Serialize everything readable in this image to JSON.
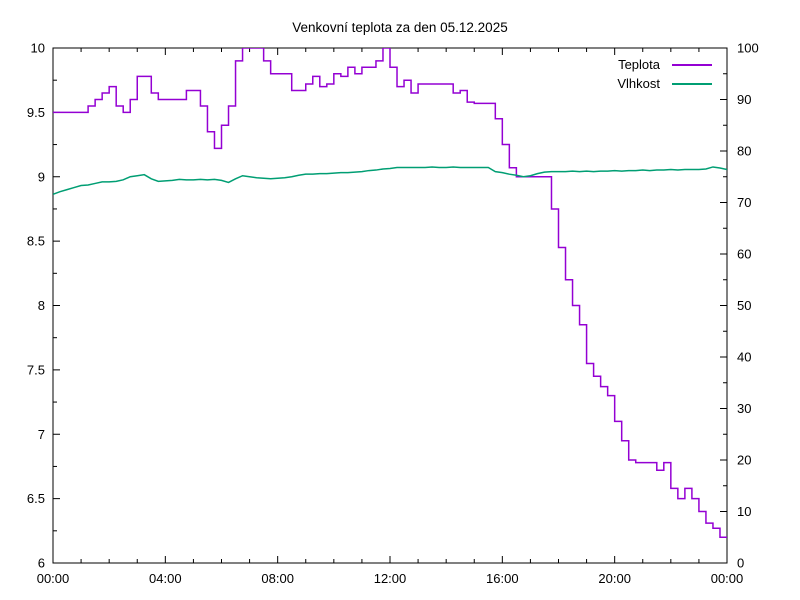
{
  "title": "Venkovní teplota za den 05.12.2025",
  "legend": {
    "position": "top-right-inside",
    "items": [
      {
        "label": "Teplota",
        "color": "#9400d3"
      },
      {
        "label": "Vlhkost",
        "color": "#009e73"
      }
    ]
  },
  "axes": {
    "x": {
      "range_hours": [
        0,
        24
      ],
      "major_tick_hours": [
        0,
        4,
        8,
        12,
        16,
        20,
        24
      ],
      "tick_labels": [
        "00:00",
        "04:00",
        "08:00",
        "12:00",
        "16:00",
        "20:00",
        "00:00"
      ],
      "minor_step_hours": 1
    },
    "y_left": {
      "range": [
        6,
        10
      ],
      "major_step": 0.5,
      "minor_step": 0.25,
      "tick_labels": [
        "6",
        "6.5",
        "7",
        "7.5",
        "8",
        "8.5",
        "9",
        "9.5",
        "10"
      ]
    },
    "y_right": {
      "range": [
        0,
        100
      ],
      "major_step": 10,
      "minor_step": 5,
      "tick_labels": [
        "0",
        "10",
        "20",
        "30",
        "40",
        "50",
        "60",
        "70",
        "80",
        "90",
        "100"
      ]
    }
  },
  "chart_data": {
    "type": "line",
    "title": "Venkovní teplota za den 05.12.2025",
    "xlabel": "",
    "ylabel_left": "",
    "ylabel_right": "",
    "grid": false,
    "x_start_hour": 0,
    "x_step_hours": 0.25,
    "x_end_hour": 24,
    "series": [
      {
        "name": "Teplota",
        "axis": "left",
        "color": "#9400d3",
        "style": "step",
        "values": [
          9.5,
          9.5,
          9.5,
          9.5,
          9.5,
          9.55,
          9.6,
          9.65,
          9.7,
          9.55,
          9.5,
          9.6,
          9.78,
          9.78,
          9.65,
          9.6,
          9.6,
          9.6,
          9.6,
          9.67,
          9.67,
          9.55,
          9.35,
          9.22,
          9.4,
          9.55,
          9.9,
          10,
          10,
          10,
          9.9,
          9.8,
          9.8,
          9.8,
          9.67,
          9.67,
          9.72,
          9.78,
          9.7,
          9.72,
          9.8,
          9.78,
          9.85,
          9.8,
          9.85,
          9.85,
          9.9,
          10,
          9.85,
          9.7,
          9.75,
          9.65,
          9.72,
          9.72,
          9.72,
          9.72,
          9.72,
          9.65,
          9.67,
          9.58,
          9.57,
          9.57,
          9.57,
          9.45,
          9.25,
          9.07,
          9.0,
          9.0,
          9.0,
          9.0,
          9.0,
          8.75,
          8.45,
          8.2,
          8.0,
          7.85,
          7.55,
          7.45,
          7.37,
          7.3,
          7.1,
          6.95,
          6.8,
          6.78,
          6.78,
          6.78,
          6.72,
          6.78,
          6.58,
          6.5,
          6.58,
          6.5,
          6.4,
          6.31,
          6.27,
          6.2,
          6.2
        ]
      },
      {
        "name": "Vlhkost",
        "axis": "right",
        "color": "#009e73",
        "style": "linear",
        "values": [
          71.6,
          72.1,
          72.5,
          72.9,
          73.3,
          73.4,
          73.7,
          74.0,
          74.0,
          74.1,
          74.4,
          75.0,
          75.2,
          75.4,
          74.6,
          74.1,
          74.2,
          74.3,
          74.5,
          74.4,
          74.4,
          74.5,
          74.4,
          74.5,
          74.3,
          73.9,
          74.6,
          75.2,
          75.0,
          74.8,
          74.7,
          74.6,
          74.7,
          74.8,
          75.0,
          75.3,
          75.5,
          75.5,
          75.6,
          75.6,
          75.7,
          75.8,
          75.8,
          75.9,
          76.0,
          76.2,
          76.3,
          76.5,
          76.6,
          76.8,
          76.8,
          76.8,
          76.8,
          76.8,
          76.9,
          76.8,
          76.8,
          76.9,
          76.8,
          76.8,
          76.8,
          76.8,
          76.8,
          76.0,
          75.8,
          75.5,
          75.3,
          75.0,
          75.2,
          75.6,
          75.9,
          76.0,
          76.0,
          76.0,
          76.1,
          76.0,
          76.1,
          76.0,
          76.1,
          76.1,
          76.2,
          76.1,
          76.2,
          76.2,
          76.3,
          76.2,
          76.3,
          76.3,
          76.4,
          76.3,
          76.4,
          76.4,
          76.4,
          76.5,
          76.9,
          76.7,
          76.4
        ]
      }
    ]
  },
  "colors": {
    "foreground": "#000000",
    "background": "#ffffff",
    "temperature_line": "#9400d3",
    "humidity_line": "#009e73"
  }
}
